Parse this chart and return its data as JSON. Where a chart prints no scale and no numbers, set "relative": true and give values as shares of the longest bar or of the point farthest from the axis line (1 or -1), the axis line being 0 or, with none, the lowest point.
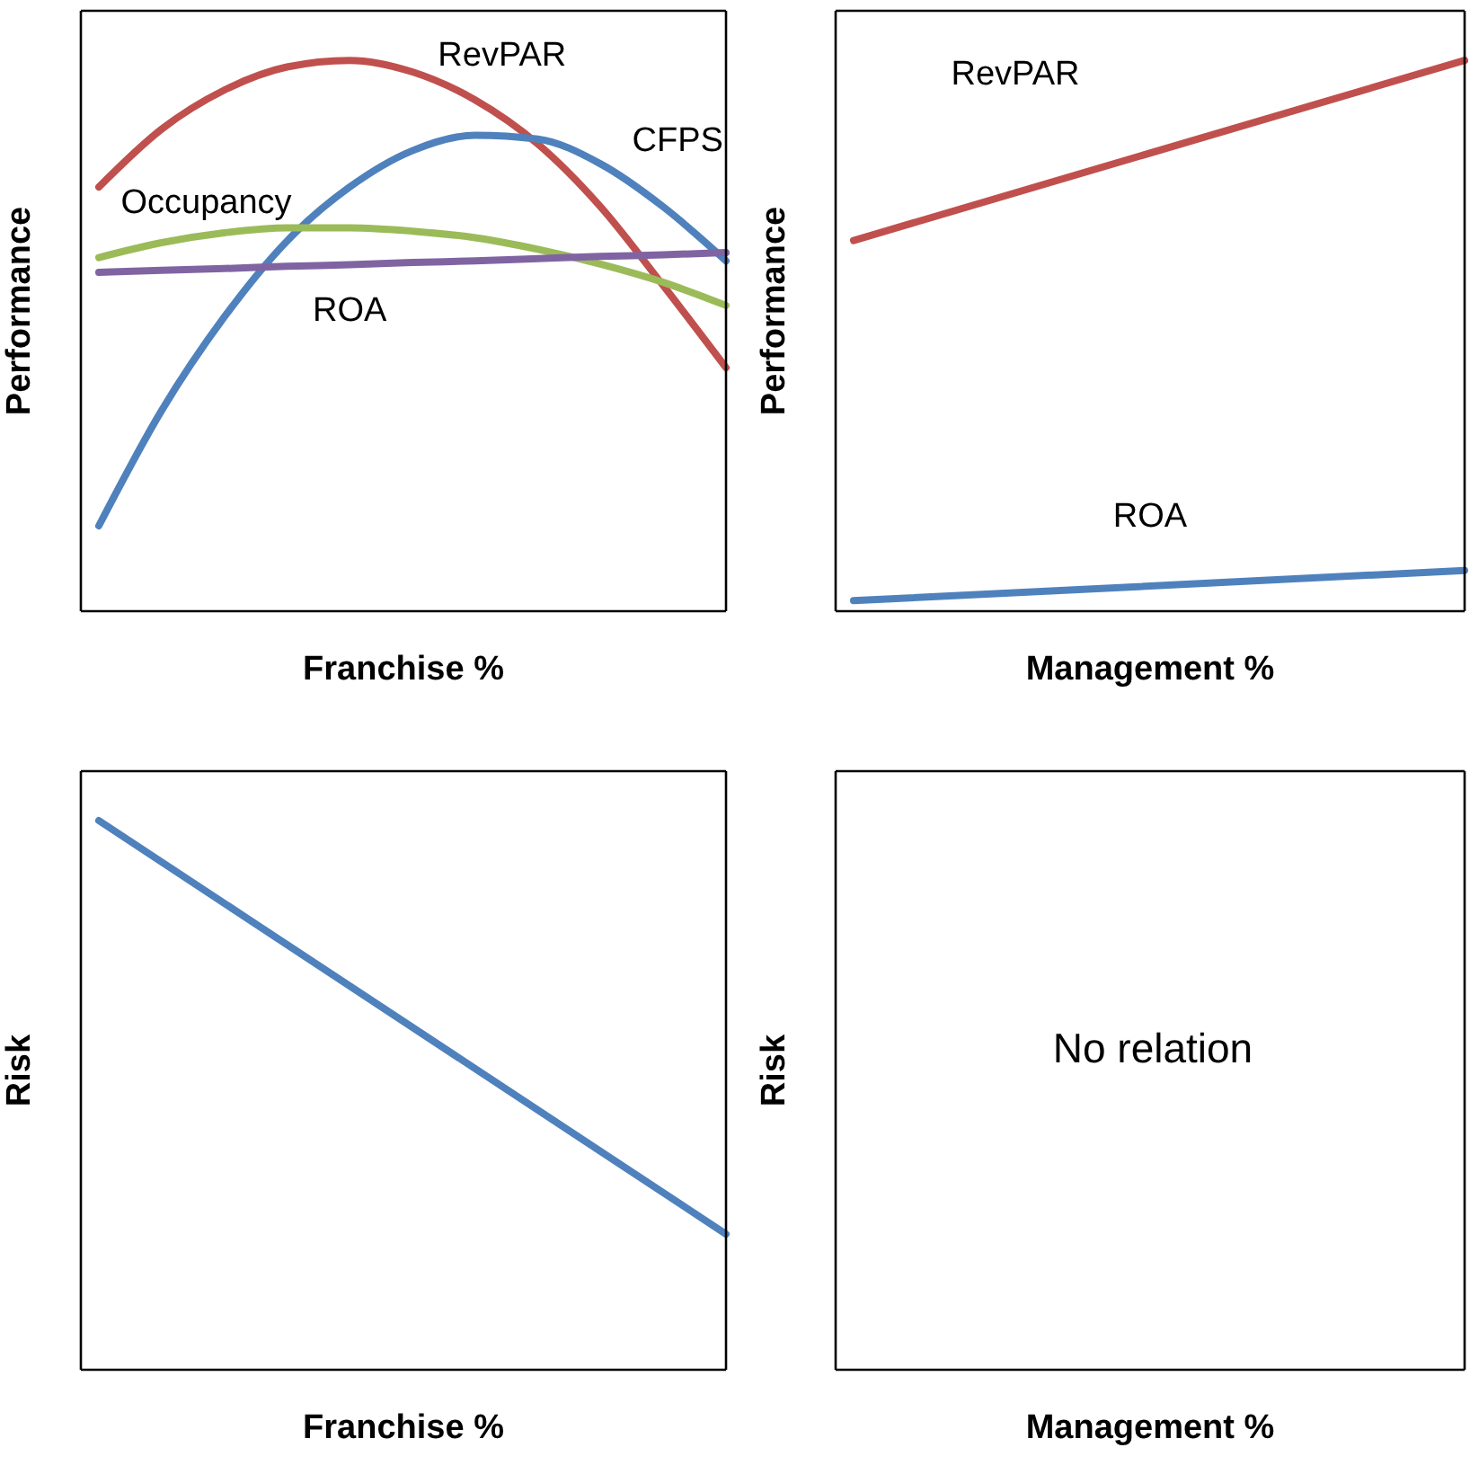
{
  "chart_data": [
    {
      "type": "line",
      "relative": true,
      "xlabel": "Franchise %",
      "ylabel": "Performance",
      "categories": [
        null,
        null,
        null,
        null,
        null,
        null,
        null,
        null,
        null,
        null,
        null
      ],
      "series": [
        {
          "name": "RevPAR",
          "color": "#c0504d",
          "values": [
            0.77,
            0.875,
            0.946,
            0.988,
            1.0,
            0.979,
            0.928,
            0.848,
            0.734,
            0.591,
            0.442
          ]
        },
        {
          "name": "CFPS",
          "color": "#4f81bd",
          "values": [
            0.155,
            0.364,
            0.534,
            0.672,
            0.77,
            0.836,
            0.864,
            0.857,
            0.812,
            0.734,
            0.636
          ]
        },
        {
          "name": "Occupancy",
          "color": "#9bbb59",
          "values": [
            0.642,
            0.669,
            0.687,
            0.696,
            0.696,
            0.69,
            0.678,
            0.657,
            0.63,
            0.597,
            0.555
          ]
        },
        {
          "name": "ROA",
          "color": "#8064a2",
          "values": [
            0.615,
            0.619,
            0.622,
            0.626,
            0.629,
            0.633,
            0.636,
            0.64,
            0.644,
            0.647,
            0.651
          ]
        }
      ]
    },
    {
      "type": "line",
      "relative": true,
      "xlabel": "Management %",
      "ylabel": "Performance",
      "categories": [
        null,
        null
      ],
      "series": [
        {
          "name": "RevPAR",
          "color": "#c0504d",
          "values": [
            0.673,
            1.0
          ]
        },
        {
          "name": "ROA",
          "color": "#4f81bd",
          "values": [
            0.019,
            0.074
          ]
        }
      ]
    },
    {
      "type": "line",
      "relative": true,
      "xlabel": "Franchise %",
      "ylabel": "Risk",
      "categories": [
        null,
        null
      ],
      "series": [
        {
          "color": "#4f81bd",
          "values": [
            1.0,
            0.247
          ]
        }
      ]
    },
    {
      "type": "other",
      "xlabel": "Management %",
      "ylabel": "Risk",
      "annotations": [
        "No relation"
      ]
    }
  ]
}
